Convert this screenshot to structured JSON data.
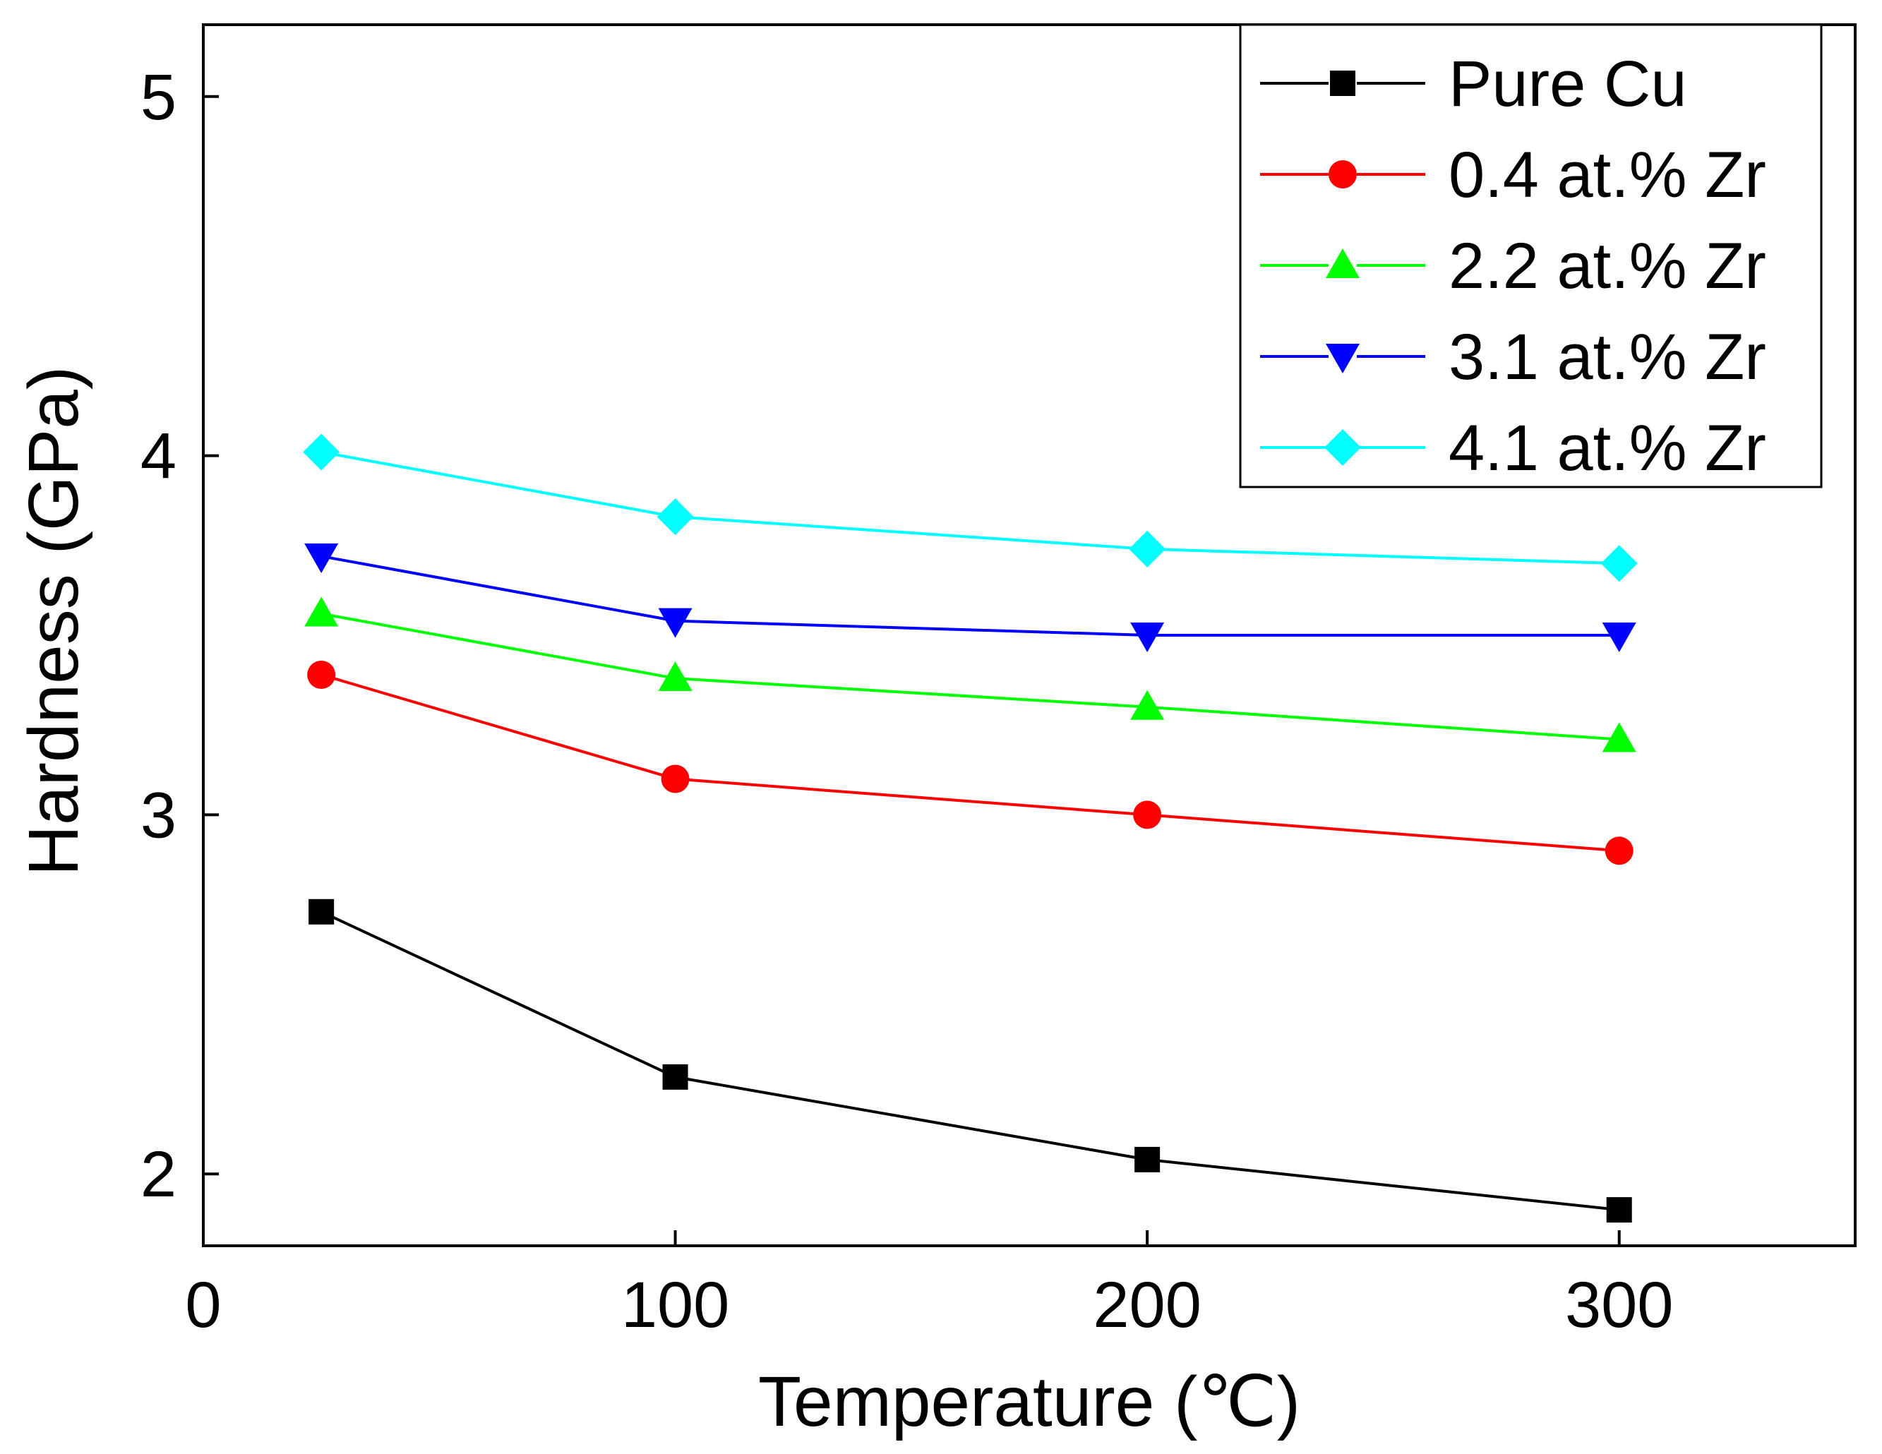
{
  "chart_data": {
    "type": "line",
    "title": "",
    "xlabel": "Temperature (℃)",
    "ylabel": "Hardness (GPa)",
    "xlim": [
      0,
      350
    ],
    "ylim": [
      1.8,
      5.2
    ],
    "xticks": [
      0,
      100,
      200,
      300
    ],
    "xtick_labels": [
      "0",
      "100",
      "200",
      "300"
    ],
    "yticks": [
      2,
      3,
      4,
      5
    ],
    "ytick_labels": [
      "2",
      "3",
      "4",
      "5"
    ],
    "grid": false,
    "legend_position": "top-right",
    "x": [
      25,
      100,
      200,
      300
    ],
    "series": [
      {
        "name": "Pure Cu",
        "color": "#000000",
        "marker": "square",
        "values": [
          2.73,
          2.27,
          2.04,
          1.9
        ]
      },
      {
        "name": "0.4 at.% Zr",
        "color": "#ff0000",
        "marker": "circle",
        "values": [
          3.39,
          3.1,
          3.0,
          2.9
        ]
      },
      {
        "name": "2.2 at.% Zr",
        "color": "#00ff00",
        "marker": "triangle-up",
        "values": [
          3.56,
          3.38,
          3.3,
          3.21
        ]
      },
      {
        "name": "3.1 at.% Zr",
        "color": "#0000ff",
        "marker": "triangle-down",
        "values": [
          3.72,
          3.54,
          3.5,
          3.5
        ]
      },
      {
        "name": "4.1 at.% Zr",
        "color": "#00ffff",
        "marker": "diamond",
        "values": [
          4.01,
          3.83,
          3.74,
          3.7
        ]
      }
    ]
  }
}
